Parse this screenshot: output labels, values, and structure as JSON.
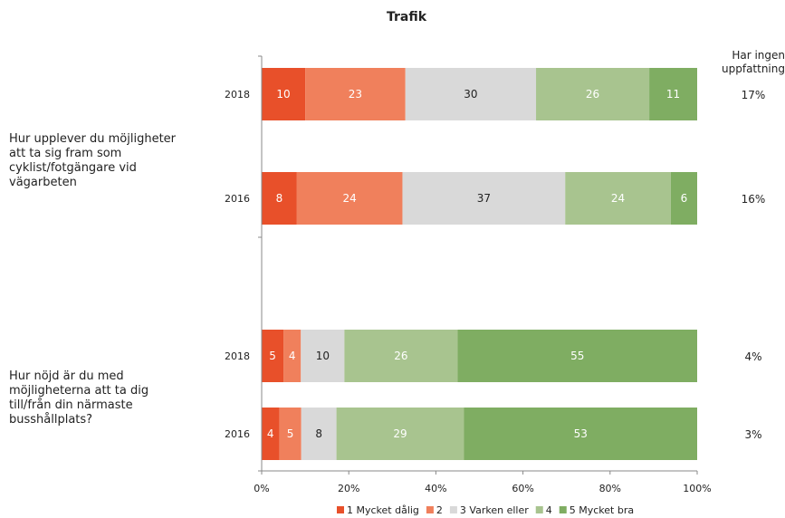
{
  "chart_data": {
    "type": "bar",
    "orientation": "horizontal",
    "stacked": "percent",
    "title": "Trafik",
    "x_ticks": [
      "0%",
      "20%",
      "40%",
      "60%",
      "80%",
      "100%"
    ],
    "xlim": [
      0,
      100
    ],
    "legend_position": "bottom",
    "no_opinion_header": "Har ingen uppfattning",
    "series": [
      {
        "name": "1 Mycket dålig",
        "color": "#e8502a"
      },
      {
        "name": "2",
        "color": "#f0805c"
      },
      {
        "name": "3 Varken eller",
        "color": "#d9d9d9"
      },
      {
        "name": "4",
        "color": "#a8c48f"
      },
      {
        "name": "5 Mycket bra",
        "color": "#7fad62"
      }
    ],
    "groups": [
      {
        "question": "Hur upplever du möjligheter att ta sig fram som cyklist/fotgängare vid vägarbeten",
        "bars": [
          {
            "year": "2018",
            "values": [
              10,
              23,
              30,
              26,
              11
            ],
            "no_opinion": "17%"
          },
          {
            "year": "2016",
            "values": [
              8,
              24,
              37,
              24,
              6
            ],
            "no_opinion": "16%"
          }
        ]
      },
      {
        "question": "Hur nöjd är du med möjligheterna att ta dig till/från din närmaste busshållplats?",
        "bars": [
          {
            "year": "2018",
            "values": [
              5,
              4,
              10,
              26,
              55
            ],
            "no_opinion": "4%"
          },
          {
            "year": "2016",
            "values": [
              4,
              5,
              8,
              29,
              53
            ],
            "no_opinion": "3%"
          }
        ]
      }
    ]
  }
}
